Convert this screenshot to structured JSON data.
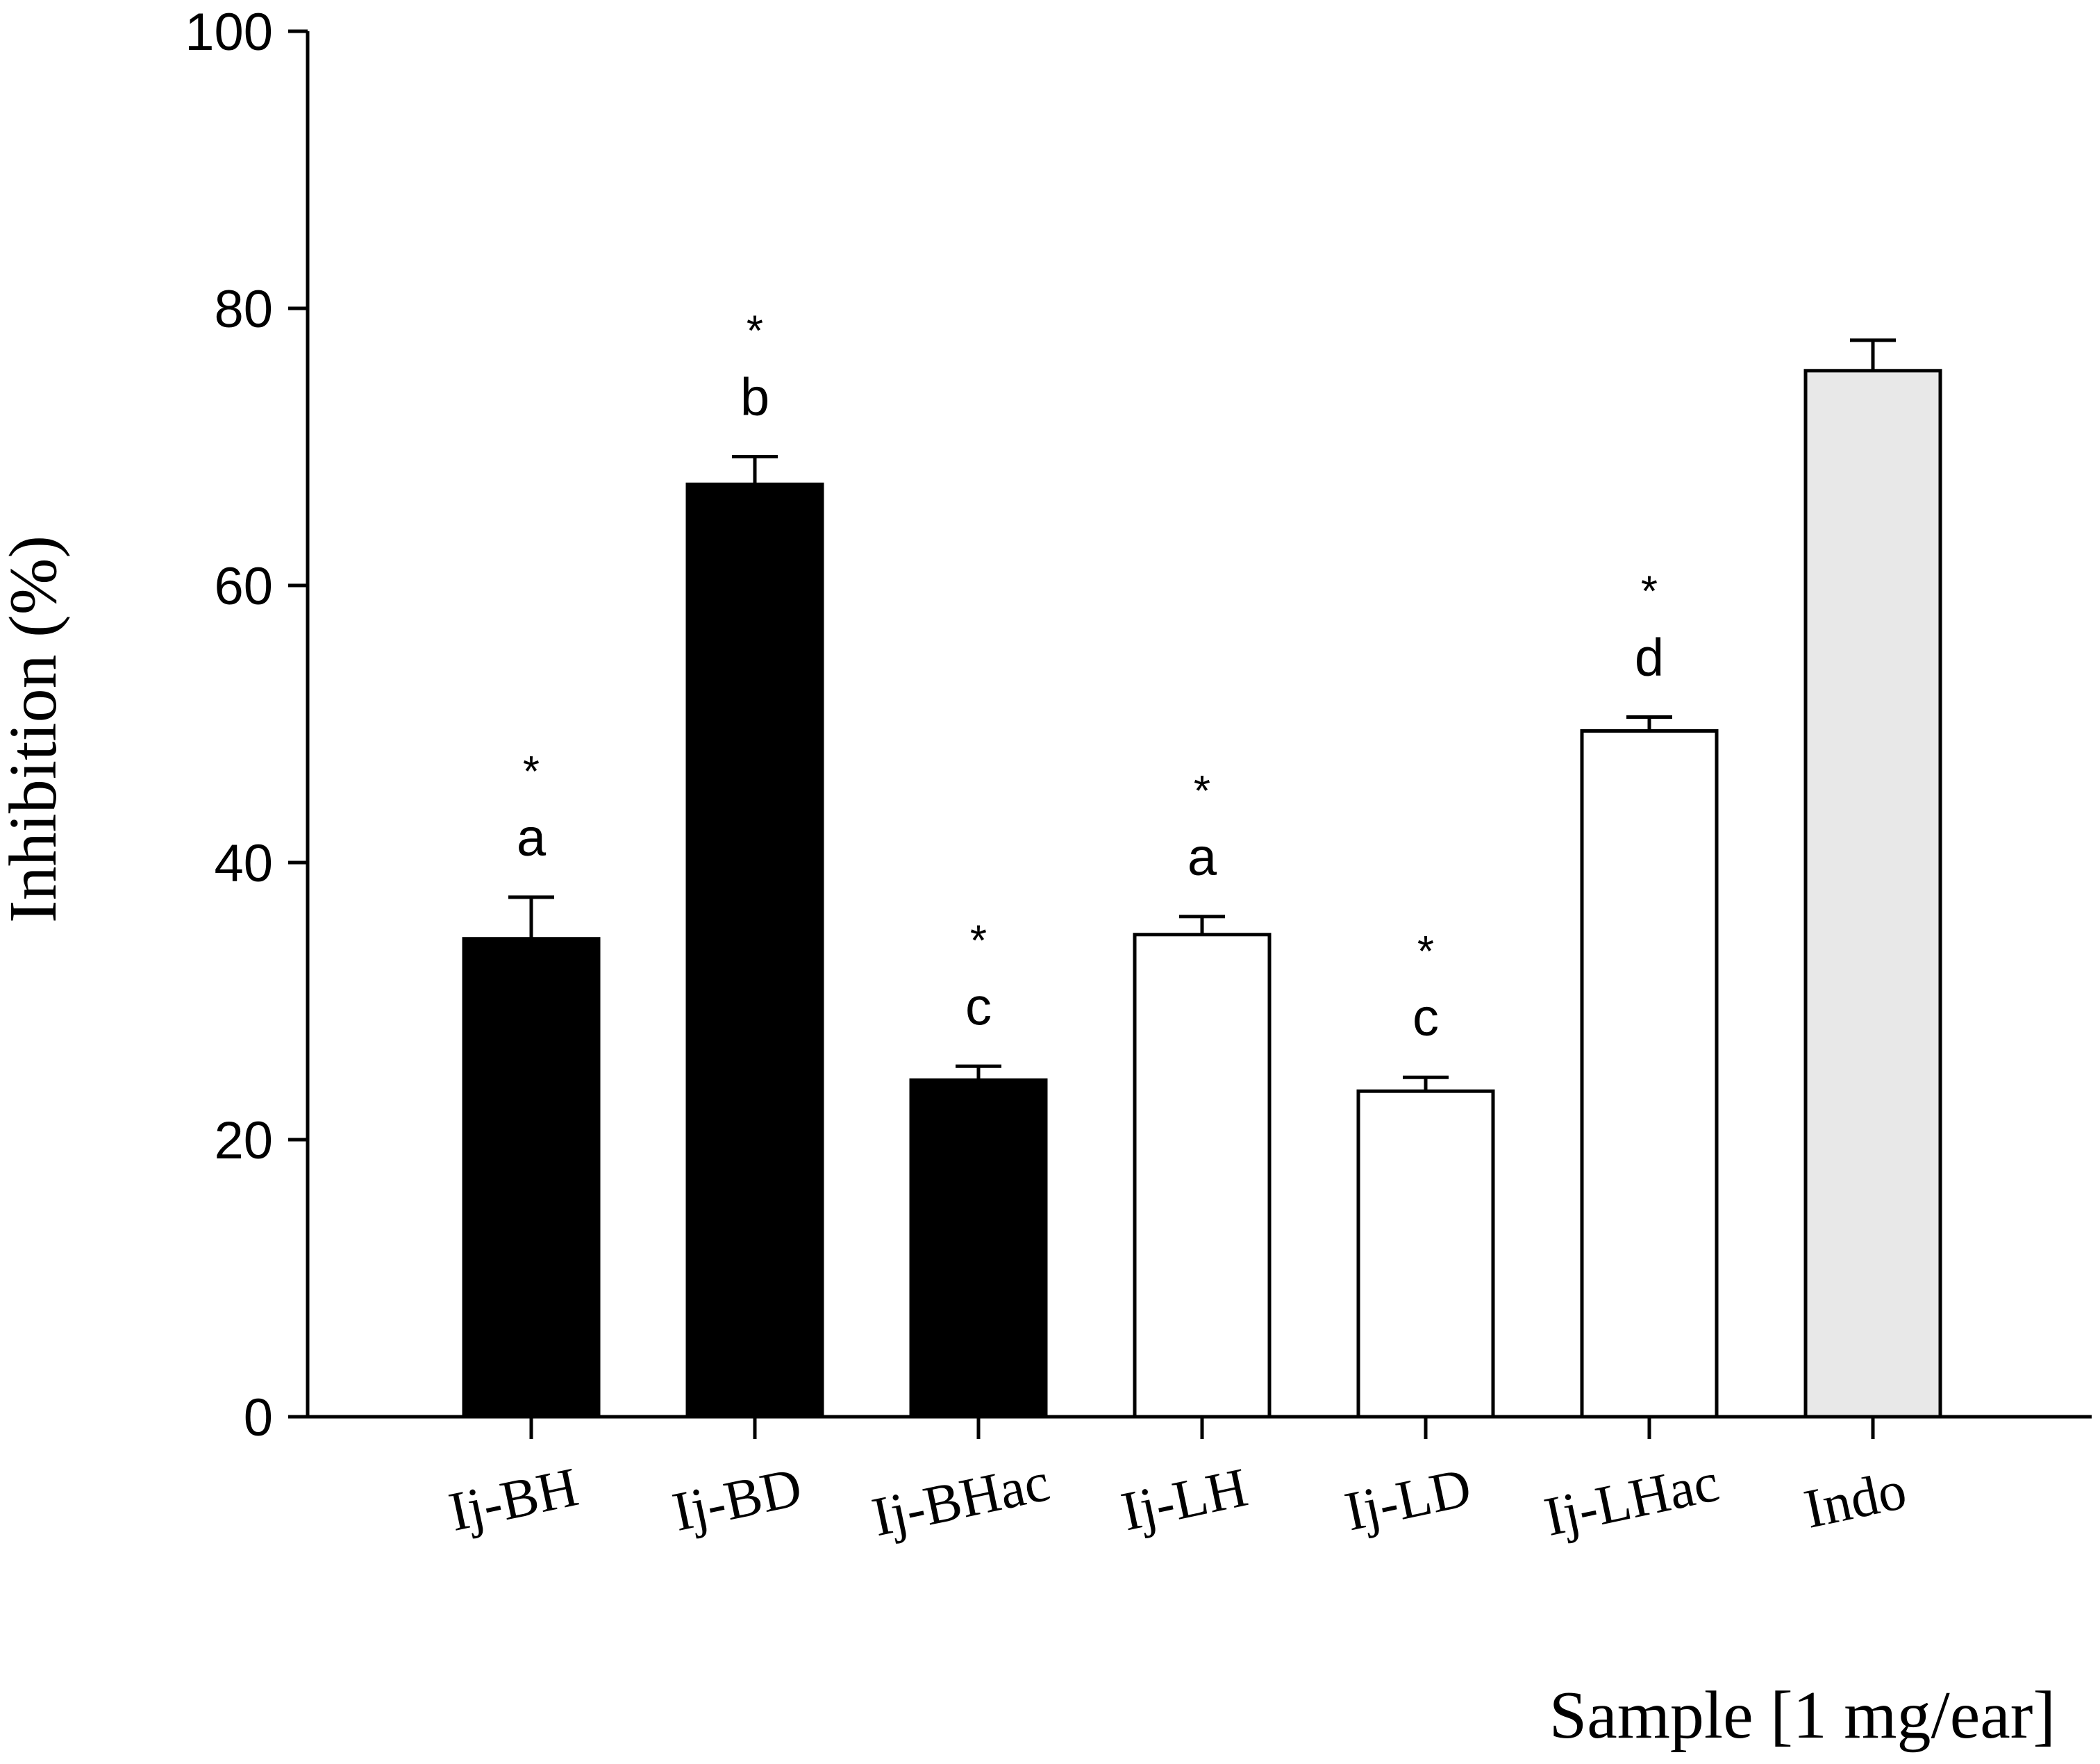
{
  "chart_data": {
    "type": "bar",
    "title": "",
    "xlabel": "Sample [1 mg/ear]",
    "ylabel": "Inhibition (%)",
    "ylim": [
      0,
      100
    ],
    "yticks": [
      "0",
      "20",
      "40",
      "60",
      "80",
      "100"
    ],
    "categories": [
      "Ij-BH",
      "Ij-BD",
      "Ij-BHac",
      "Ij-LH",
      "Ij-LD",
      "Ij-LHac",
      "Indo"
    ],
    "values": [
      34.5,
      67.3,
      24.3,
      34.8,
      23.5,
      49.5,
      75.5
    ],
    "errors": [
      3.0,
      2.0,
      1.0,
      1.3,
      1.0,
      1.0,
      2.2
    ],
    "letters": [
      "a",
      "b",
      "c",
      "a",
      "c",
      "d",
      ""
    ],
    "stars": [
      "*",
      "*",
      "*",
      "*",
      "*",
      "*",
      ""
    ],
    "fills": [
      "#000000",
      "#000000",
      "#000000",
      "#ffffff",
      "#ffffff",
      "#ffffff",
      "#e8e8e8"
    ]
  }
}
